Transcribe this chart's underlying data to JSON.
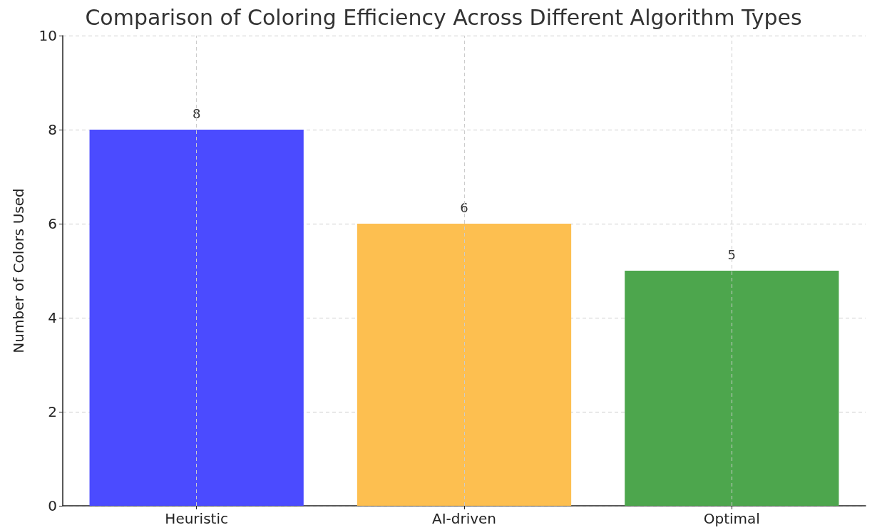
{
  "chart_data": {
    "type": "bar",
    "title": "Comparison of Coloring Efficiency Across Different Algorithm Types",
    "ylabel": "Number of Colors Used",
    "categories": [
      "Heuristic",
      "AI-driven",
      "Optimal"
    ],
    "values": [
      8,
      6,
      5
    ],
    "colors": [
      "#4b4bff",
      "#fdbf50",
      "#4da64d"
    ],
    "ylim": [
      0,
      10
    ],
    "yticks": [
      0,
      2,
      4,
      6,
      8,
      10
    ],
    "grid": true,
    "data_labels": true
  }
}
